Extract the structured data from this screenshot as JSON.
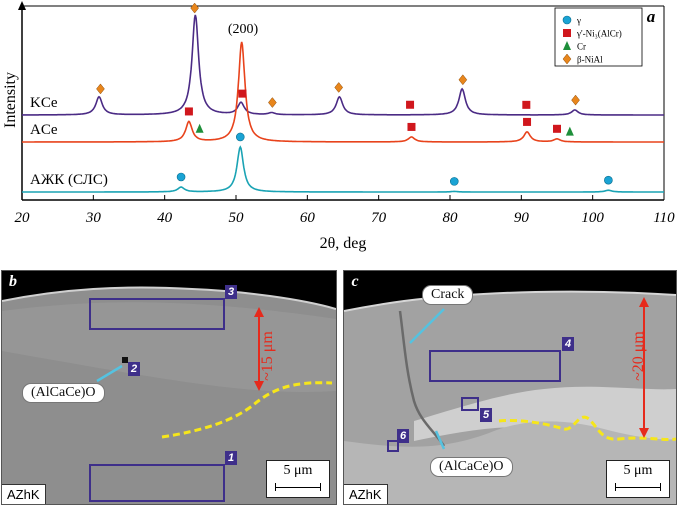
{
  "chart_data": {
    "type": "line",
    "panel_label": "a",
    "xlabel": "2θ, deg",
    "ylabel": "Intensity",
    "xlim": [
      20,
      110
    ],
    "xticks": [
      20,
      30,
      40,
      50,
      60,
      70,
      80,
      90,
      100,
      110
    ],
    "peak_label": "(200)",
    "legend": {
      "placement": "top-right",
      "entries": [
        {
          "label": "γ",
          "marker": "circle",
          "color": "#1aa3d4"
        },
        {
          "label": "γ'-Ni₃(AlCr)",
          "marker": "square",
          "color": "#d0171d"
        },
        {
          "label": "Cr",
          "marker": "triangle",
          "color": "#1e8f3a"
        },
        {
          "label": "β-NiAl",
          "marker": "diamond",
          "color": "#e8861c"
        }
      ]
    },
    "series": [
      {
        "name": "KCe",
        "color": "#4b2b85",
        "peaks": [
          [
            30.8,
            0.18
          ],
          [
            44.3,
            1.0
          ],
          [
            50.7,
            0.12
          ],
          [
            55,
            0.02
          ],
          [
            64.5,
            0.18
          ],
          [
            81.7,
            0.26
          ],
          [
            97.5,
            0.05
          ]
        ],
        "markers": [
          {
            "x": 31,
            "phase": "β-NiAl"
          },
          {
            "x": 44.2,
            "phase": "β-NiAl"
          },
          {
            "x": 50.9,
            "phase": "γ'-Ni₃(AlCr)"
          },
          {
            "x": 55.1,
            "phase": "β-NiAl"
          },
          {
            "x": 64.4,
            "phase": "β-NiAl"
          },
          {
            "x": 74.4,
            "phase": "γ'-Ni₃(AlCr)"
          },
          {
            "x": 81.8,
            "phase": "β-NiAl"
          },
          {
            "x": 90.7,
            "phase": "γ'-Ni₃(AlCr)"
          },
          {
            "x": 97.6,
            "phase": "β-NiAl"
          }
        ]
      },
      {
        "name": "ACe",
        "color": "#e8431c",
        "peaks": [
          [
            43.4,
            0.2
          ],
          [
            50.8,
            1.0
          ],
          [
            74.6,
            0.05
          ],
          [
            90.8,
            0.1
          ],
          [
            95,
            0.03
          ]
        ],
        "markers": [
          {
            "x": 43.4,
            "phase": "γ'-Ni₃(AlCr)"
          },
          {
            "x": 44.9,
            "phase": "Cr"
          },
          {
            "x": 74.6,
            "phase": "γ'-Ni₃(AlCr)"
          },
          {
            "x": 90.8,
            "phase": "γ'-Ni₃(AlCr)"
          },
          {
            "x": 95,
            "phase": "γ'-Ni₃(AlCr)"
          },
          {
            "x": 96.8,
            "phase": "Cr"
          }
        ]
      },
      {
        "name": "АЖК (СЛС)",
        "color": "#1aa3b4",
        "peaks": [
          [
            42.3,
            0.08
          ],
          [
            50.6,
            0.75
          ],
          [
            80.6,
            0.01
          ],
          [
            102.2,
            0.03
          ]
        ],
        "markers": [
          {
            "x": 42.3,
            "phase": "γ"
          },
          {
            "x": 50.6,
            "phase": "γ"
          },
          {
            "x": 80.6,
            "phase": "γ"
          },
          {
            "x": 102.2,
            "phase": "γ"
          }
        ]
      }
    ]
  },
  "micrographs": {
    "b": {
      "label": "b",
      "sample": "AZhK",
      "scale": "5 μm",
      "depth": "~15 μm",
      "callout": "(AlCaCe)O",
      "regions": [
        "3",
        "2",
        "1"
      ]
    },
    "c": {
      "label": "c",
      "sample": "AZhK",
      "scale": "5 μm",
      "depth": "~20 μm",
      "crack": "Crack",
      "callout": "(AlCaCe)O",
      "regions": [
        "4",
        "5",
        "6"
      ]
    }
  }
}
